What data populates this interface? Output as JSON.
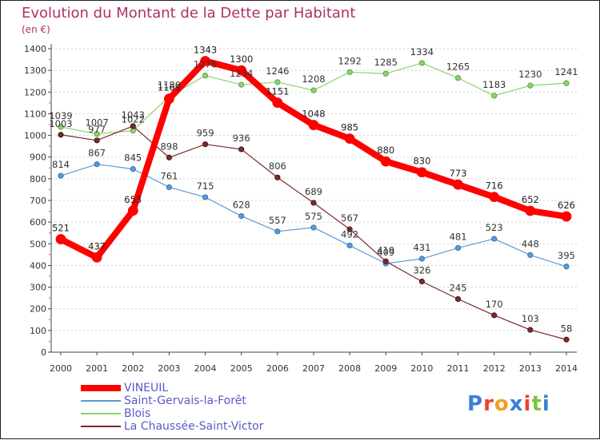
{
  "title": "Evolution du Montant de la Dette par Habitant",
  "unit": "(en €)",
  "logo_text": "Proxiti",
  "chart_data": {
    "type": "line",
    "title": "Evolution du Montant de la Dette par Habitant",
    "xlabel": "",
    "ylabel": "(en €)",
    "x": [
      "2000",
      "2001",
      "2002",
      "2003",
      "2004",
      "2005",
      "2006",
      "2007",
      "2008",
      "2009",
      "2010",
      "2011",
      "2012",
      "2013",
      "2014"
    ],
    "yticks": [
      0,
      100,
      200,
      300,
      400,
      500,
      600,
      700,
      800,
      900,
      1000,
      1100,
      1200,
      1300,
      1400
    ],
    "ylim": [
      0,
      1400
    ],
    "grid": "horizontal dashed",
    "legend_position": "bottom-left",
    "series": [
      {
        "name": "VINEUIL",
        "color": "#ff0000",
        "values": [
          521,
          437,
          653,
          1169,
          1343,
          1300,
          1151,
          1048,
          985,
          880,
          830,
          773,
          716,
          652,
          626
        ]
      },
      {
        "name": "Saint-Gervais-la-Forêt",
        "color": "#5b9bd5",
        "values": [
          814,
          867,
          845,
          761,
          715,
          628,
          557,
          575,
          492,
          409,
          431,
          481,
          523,
          448,
          395
        ]
      },
      {
        "name": "Blois",
        "color": "#8fd16a",
        "values": [
          1039,
          1007,
          1022,
          1180,
          1276,
          1234,
          1246,
          1208,
          1292,
          1285,
          1334,
          1265,
          1183,
          1230,
          1241
        ]
      },
      {
        "name": "La Chaussée-Saint-Victor",
        "color": "#7a2a2a",
        "values": [
          1003,
          977,
          1043,
          898,
          959,
          936,
          806,
          689,
          567,
          419,
          326,
          245,
          170,
          103,
          58
        ]
      }
    ]
  }
}
